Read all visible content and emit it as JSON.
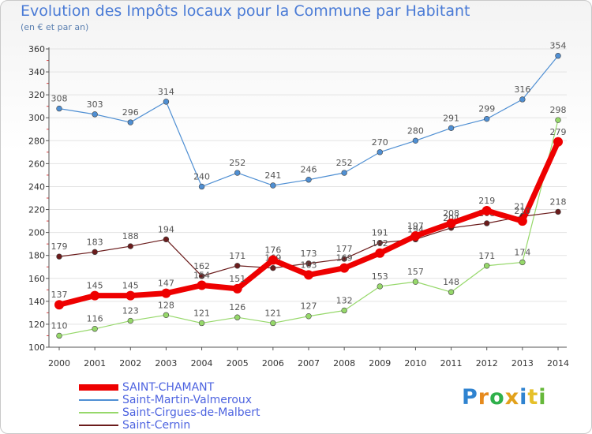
{
  "title": "Evolution des Impôts locaux pour la Commune par Habitant",
  "subtitle": "(en € et par an)",
  "logo": {
    "letters": [
      "P",
      "r",
      "o",
      "x",
      "i",
      "t",
      "i"
    ],
    "colors": [
      "#2f83d0",
      "#e68a1e",
      "#2fb04b",
      "#e2a11b",
      "#2f83d0",
      "#e6c02a",
      "#66b83a"
    ]
  },
  "colors": {
    "axis": "#555555",
    "grid": "#e3e3e3",
    "tick_text": "#333333",
    "label_text": "#555555",
    "minor_tick": "#e04040"
  },
  "chart_data": {
    "type": "line",
    "x": [
      2000,
      2001,
      2002,
      2003,
      2004,
      2005,
      2006,
      2007,
      2008,
      2009,
      2010,
      2011,
      2012,
      2013,
      2014
    ],
    "ylim": [
      100,
      360
    ],
    "yticks": [
      100,
      120,
      140,
      160,
      180,
      200,
      220,
      240,
      260,
      280,
      300,
      320,
      340,
      360
    ],
    "grid": true,
    "legend_position": "bottom-left",
    "series": [
      {
        "name": "Saint-Martin-Valmeroux",
        "color": "#4f8fd3",
        "values": [
          308,
          303,
          296,
          314,
          240,
          252,
          241,
          246,
          252,
          270,
          280,
          291,
          299,
          316,
          354
        ],
        "labels": [
          "308",
          "303",
          "296",
          "314",
          "240",
          "252",
          "241",
          "246",
          "252",
          "270",
          "280",
          "291",
          "299",
          "316",
          "354"
        ]
      },
      {
        "name": "Saint-Cirgues-de-Malbert",
        "color": "#96d86a",
        "values": [
          110,
          116,
          123,
          128,
          121,
          126,
          121,
          127,
          132,
          153,
          157,
          148,
          171,
          174,
          298
        ],
        "labels": [
          "110",
          "116",
          "123",
          "128",
          "121",
          "126",
          "121",
          "127",
          "132",
          "153",
          "157",
          "148",
          "171",
          "174",
          "298"
        ]
      },
      {
        "name": "Saint-Cernin",
        "color": "#6b1c1c",
        "values": [
          179,
          183,
          188,
          194,
          162,
          171,
          169,
          173,
          177,
          191,
          194,
          204,
          208,
          214,
          218
        ],
        "labels": [
          "179",
          "183",
          "188",
          "194",
          "162",
          "171",
          "169",
          "173",
          "177",
          "191",
          "194",
          "204",
          "208",
          "214",
          "218"
        ]
      },
      {
        "name": "SAINT-CHAMANT",
        "color": "#ee0000",
        "values": [
          137,
          145,
          145,
          147,
          154,
          151,
          176,
          163,
          169,
          182,
          197,
          208,
          219,
          210,
          279
        ],
        "labels": [
          "137",
          "145",
          "145",
          "147",
          "154",
          "151",
          "176",
          "163",
          "169",
          "182",
          "197",
          "208",
          "219",
          "210",
          "279"
        ]
      }
    ]
  },
  "legend": [
    {
      "name": "SAINT-CHAMANT",
      "color": "#ee0000",
      "thick": true
    },
    {
      "name": "Saint-Martin-Valmeroux",
      "color": "#4f8fd3",
      "thick": false
    },
    {
      "name": "Saint-Cirgues-de-Malbert",
      "color": "#96d86a",
      "thick": false
    },
    {
      "name": "Saint-Cernin",
      "color": "#6b1c1c",
      "thick": false
    }
  ]
}
